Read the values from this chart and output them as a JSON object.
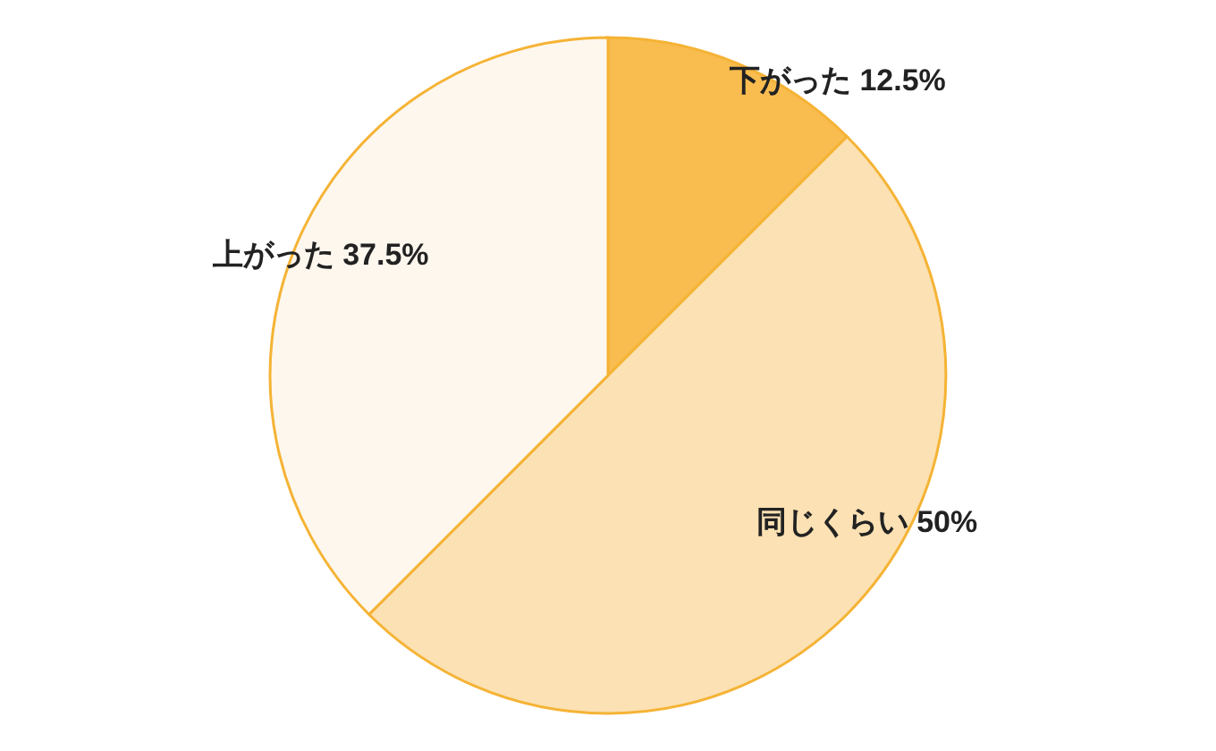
{
  "chart_data": {
    "type": "pie",
    "categories": [
      "下がった",
      "同じくらい",
      "上がった"
    ],
    "values": [
      12.5,
      50,
      37.5
    ],
    "value_labels": [
      "12.5%",
      "50%",
      "37.5%"
    ],
    "colors": [
      "#f9bc4f",
      "#fbe1b3",
      "#fdf7ee"
    ]
  }
}
